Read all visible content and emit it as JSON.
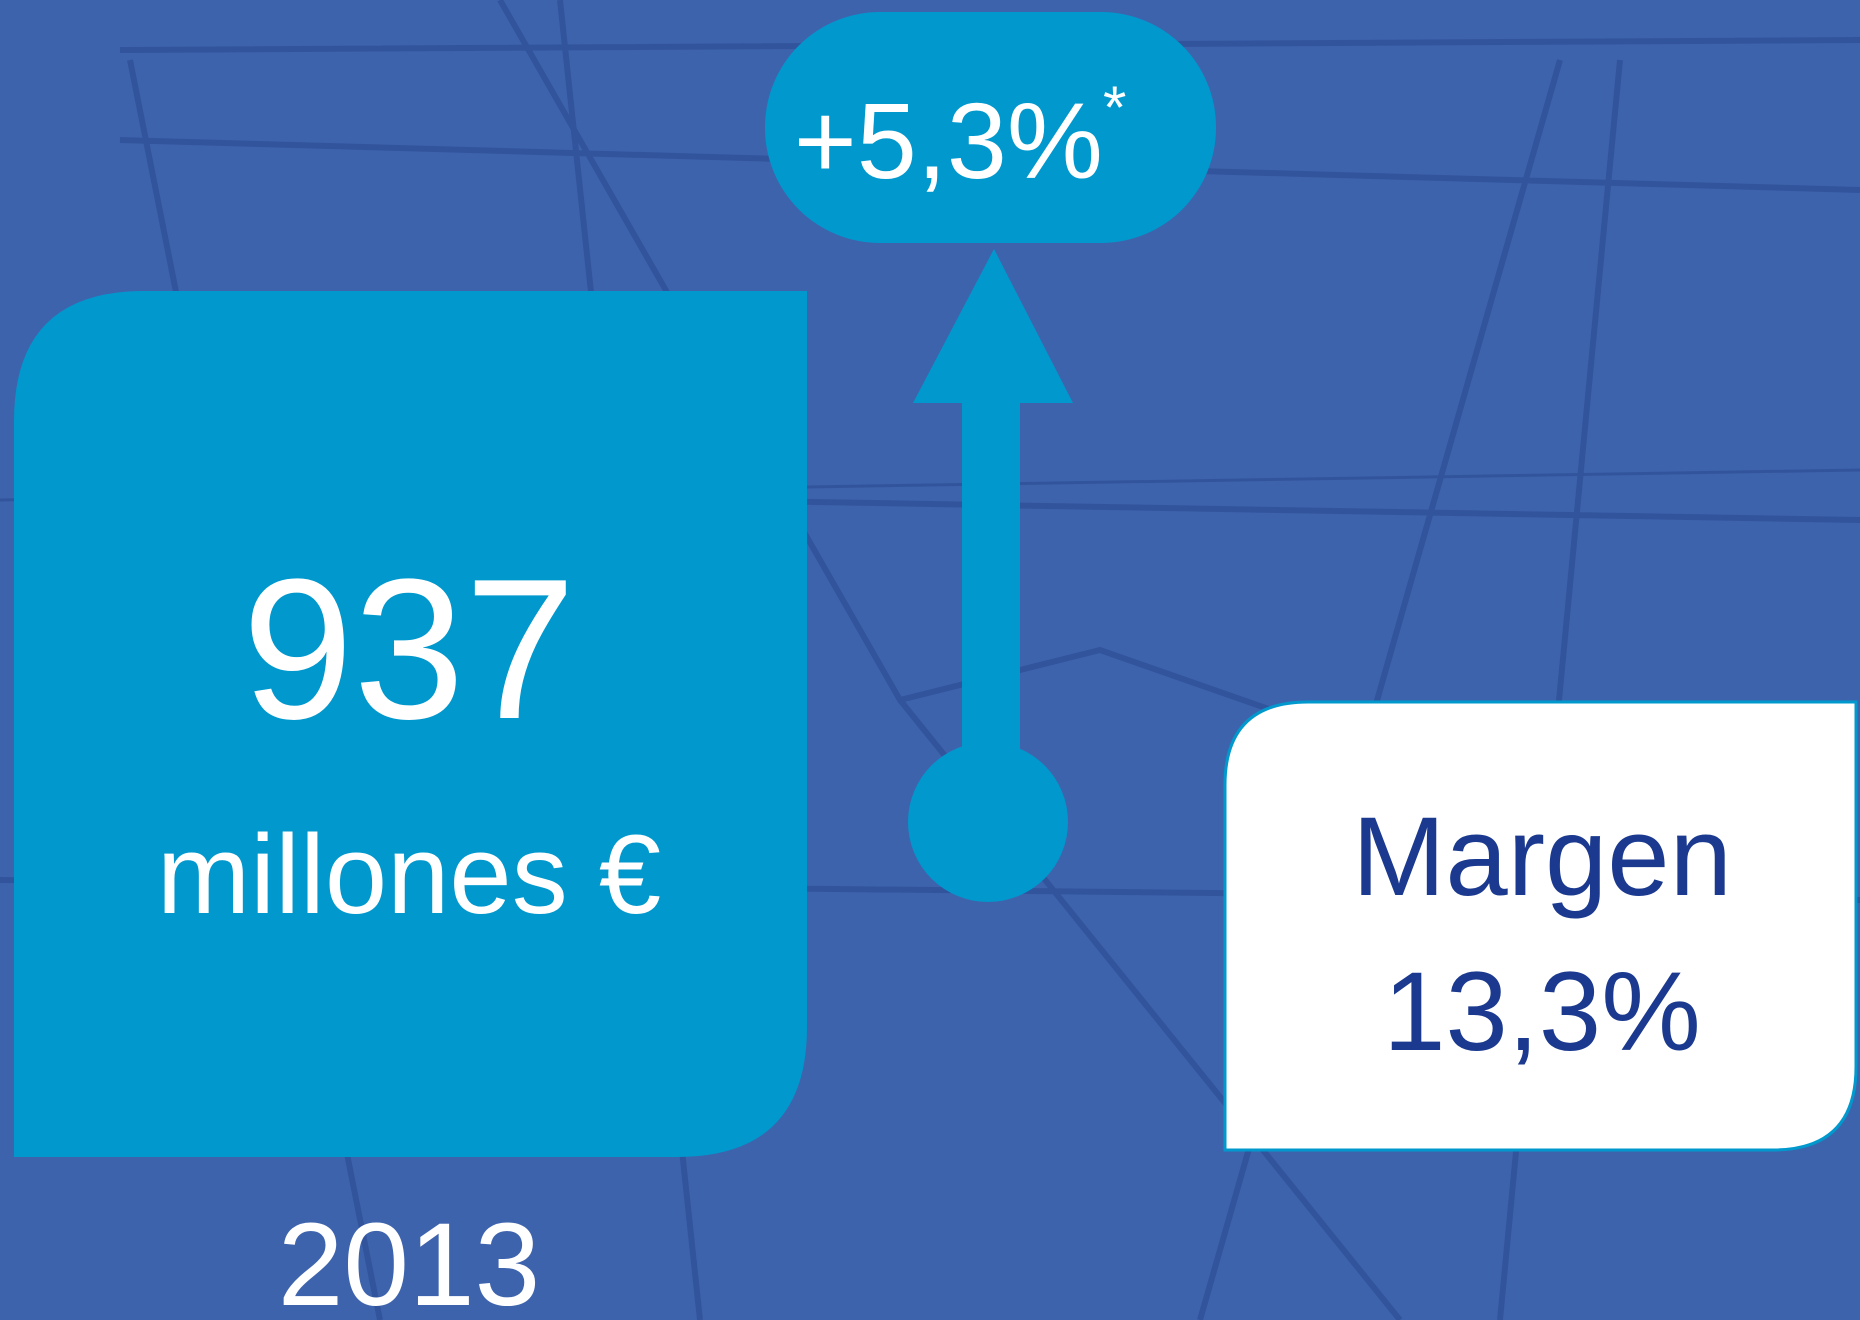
{
  "badge": {
    "change": "+5,3%",
    "note": "*"
  },
  "main_box": {
    "value": "937",
    "unit": "millones €"
  },
  "year": "2013",
  "margin_box": {
    "label": "Margen",
    "value": "13,3%"
  }
}
